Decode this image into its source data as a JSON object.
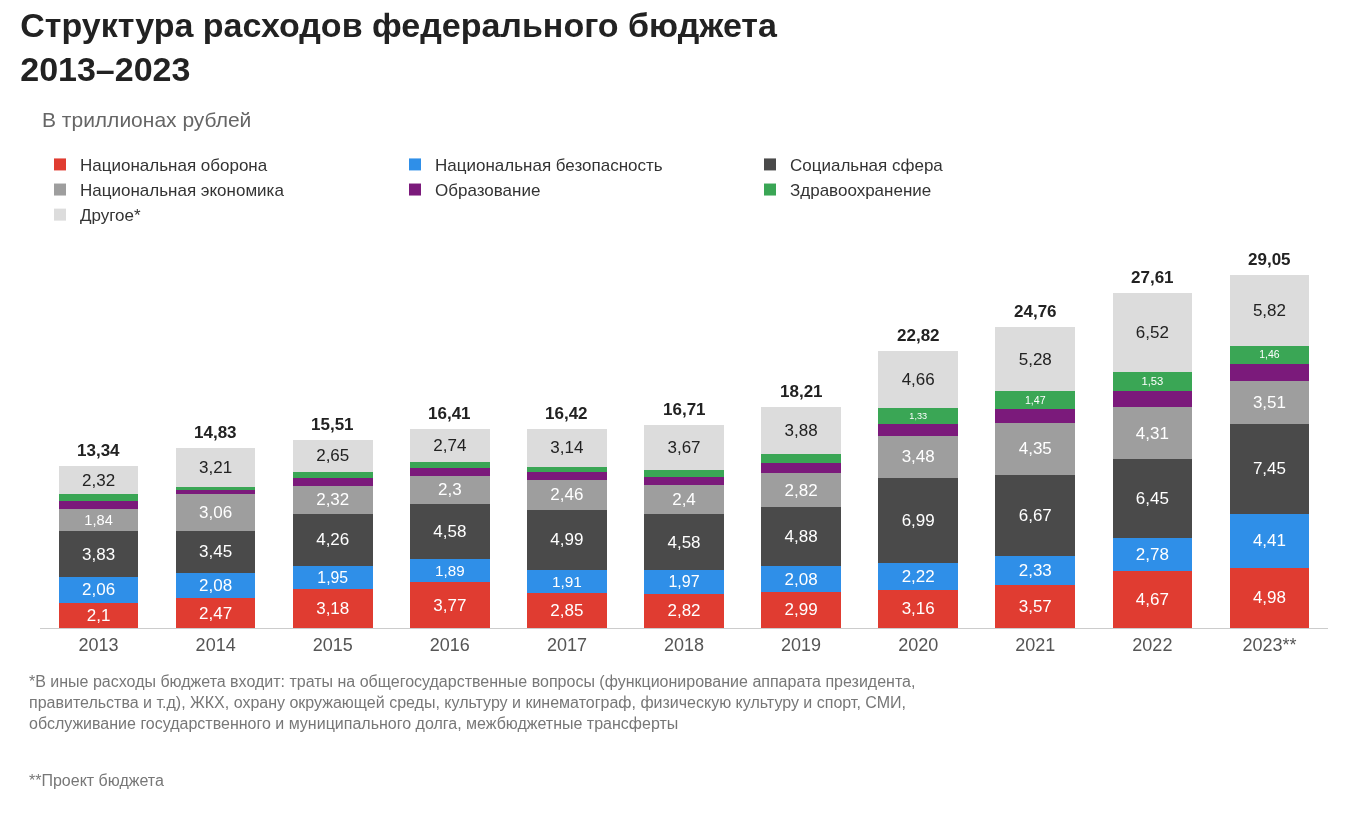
{
  "chart_data": {
    "type": "bar",
    "stacked": true,
    "title": "Структура расходов федерального бюджета 2013–2023",
    "subtitle": "В триллионах рублей",
    "categories": [
      "2013",
      "2014",
      "2015",
      "2016",
      "2017",
      "2018",
      "2019",
      "2020",
      "2021",
      "2022",
      "2023**"
    ],
    "series": [
      {
        "name": "Национальная оборона",
        "color": "#e03c31",
        "values": [
          2.1,
          2.47,
          3.18,
          3.77,
          2.85,
          2.82,
          2.99,
          3.16,
          3.57,
          4.67,
          4.98
        ],
        "value_labels": [
          "2,1",
          "2,47",
          "3,18",
          "3,77",
          "2,85",
          "2,82",
          "2,99",
          "3,16",
          "3,57",
          "4,67",
          "4,98"
        ]
      },
      {
        "name": "Национальная безопасность",
        "color": "#2f8fe8",
        "values": [
          2.06,
          2.08,
          1.95,
          1.89,
          1.91,
          1.97,
          2.08,
          2.22,
          2.33,
          2.78,
          4.41
        ],
        "value_labels": [
          "2,06",
          "2,08",
          "1,95",
          "1,89",
          "1,91",
          "1,97",
          "2,08",
          "2,22",
          "2,33",
          "2,78",
          "4,41"
        ]
      },
      {
        "name": "Социальная сфера",
        "color": "#4a4a4a",
        "values": [
          3.83,
          3.45,
          4.26,
          4.58,
          4.99,
          4.58,
          4.88,
          6.99,
          6.67,
          6.45,
          7.45
        ],
        "value_labels": [
          "3,83",
          "3,45",
          "4,26",
          "4,58",
          "4,99",
          "4,58",
          "4,88",
          "6,99",
          "6,67",
          "6,45",
          "7,45"
        ]
      },
      {
        "name": "Национальная экономика",
        "color": "#9e9e9e",
        "values": [
          1.84,
          3.06,
          2.32,
          2.3,
          2.46,
          2.4,
          2.82,
          3.48,
          4.35,
          4.31,
          3.51
        ],
        "value_labels": [
          "1,84",
          "3,06",
          "2,32",
          "2,3",
          "2,46",
          "2,4",
          "2,82",
          "3,48",
          "4,35",
          "4,31",
          "3,51"
        ]
      },
      {
        "name": "Образование",
        "color": "#7b1a7b",
        "values": [
          0.65,
          0.33,
          0.62,
          0.6,
          0.6,
          0.7,
          0.83,
          0.98,
          1.09,
          1.35,
          1.42
        ],
        "value_labels": [
          null,
          null,
          null,
          null,
          null,
          null,
          null,
          null,
          null,
          null,
          null
        ]
      },
      {
        "name": "Здравоохранение",
        "color": "#3aa655",
        "values": [
          0.54,
          0.23,
          0.53,
          0.53,
          0.47,
          0.57,
          0.73,
          1.33,
          1.47,
          1.53,
          1.46
        ],
        "value_labels": [
          null,
          null,
          null,
          null,
          null,
          null,
          null,
          "1,33",
          "1,47",
          "1,53",
          "1,46"
        ]
      },
      {
        "name": "Другое*",
        "color": "#dcdcdc",
        "values": [
          2.32,
          3.21,
          2.65,
          2.74,
          3.14,
          3.67,
          3.88,
          4.66,
          5.28,
          6.52,
          5.82
        ],
        "value_labels": [
          "2,32",
          "3,21",
          "2,65",
          "2,74",
          "3,14",
          "3,67",
          "3,88",
          "4,66",
          "5,28",
          "6,52",
          "5,82"
        ]
      }
    ],
    "totals": [
      "13,34",
      "14,83",
      "15,51",
      "16,41",
      "16,42",
      "16,71",
      "18,21",
      "22,82",
      "24,76",
      "27,61",
      "29,05"
    ],
    "legend": "top",
    "grid": false,
    "tick_labels": "x",
    "annotations": [
      "*В иные расходы бюджета входит: траты на общегосударственные вопросы (функционирование аппарата президента, правительства и т.д), ЖКХ, охрану окружающей среды, культуру и кинематограф, физическую культуру и спорт, СМИ, обслуживание государственного и муниципального долга, межбюджетные трансферты",
      "**Проект бюджета"
    ]
  }
}
